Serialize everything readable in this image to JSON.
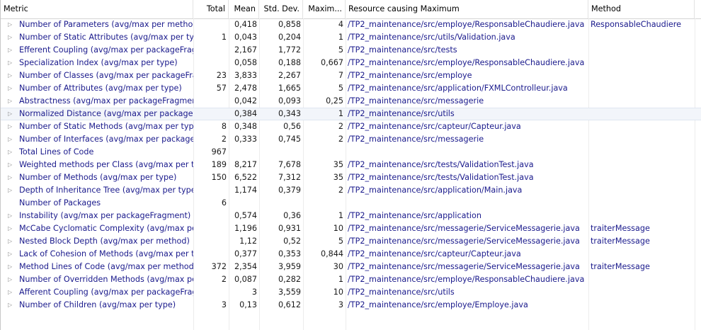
{
  "columns": {
    "metric": "Metric",
    "total": "Total",
    "mean": "Mean",
    "stddev": "Std. Dev.",
    "maximum": "Maxim...",
    "resource": "Resource causing Maximum",
    "method": "Method"
  },
  "rows": [
    {
      "metric": "Number of Parameters (avg/max per method)",
      "total": "",
      "mean": "0,418",
      "stddev": "0,858",
      "max": "4",
      "resource": "/TP2_maintenance/src/employe/ResponsableChaudiere.java",
      "method": "ResponsableChaudiere",
      "expandable": true
    },
    {
      "metric": "Number of Static Attributes (avg/max per type)",
      "total": "1",
      "mean": "0,043",
      "stddev": "0,204",
      "max": "1",
      "resource": "/TP2_maintenance/src/utils/Validation.java",
      "method": "",
      "expandable": true
    },
    {
      "metric": "Efferent Coupling (avg/max per packageFragment)",
      "total": "",
      "mean": "2,167",
      "stddev": "1,772",
      "max": "5",
      "resource": "/TP2_maintenance/src/tests",
      "method": "",
      "expandable": true
    },
    {
      "metric": "Specialization Index (avg/max per type)",
      "total": "",
      "mean": "0,058",
      "stddev": "0,188",
      "max": "0,667",
      "resource": "/TP2_maintenance/src/employe/ResponsableChaudiere.java",
      "method": "",
      "expandable": true
    },
    {
      "metric": "Number of Classes (avg/max per packageFragment)",
      "total": "23",
      "mean": "3,833",
      "stddev": "2,267",
      "max": "7",
      "resource": "/TP2_maintenance/src/employe",
      "method": "",
      "expandable": true
    },
    {
      "metric": "Number of Attributes (avg/max per type)",
      "total": "57",
      "mean": "2,478",
      "stddev": "1,665",
      "max": "5",
      "resource": "/TP2_maintenance/src/application/FXMLControlleur.java",
      "method": "",
      "expandable": true
    },
    {
      "metric": "Abstractness (avg/max per packageFragment)",
      "total": "",
      "mean": "0,042",
      "stddev": "0,093",
      "max": "0,25",
      "resource": "/TP2_maintenance/src/messagerie",
      "method": "",
      "expandable": true
    },
    {
      "metric": "Normalized Distance (avg/max per packageFragment)",
      "total": "",
      "mean": "0,384",
      "stddev": "0,343",
      "max": "1",
      "resource": "/TP2_maintenance/src/utils",
      "method": "",
      "expandable": true,
      "selected": true
    },
    {
      "metric": "Number of Static Methods (avg/max per type)",
      "total": "8",
      "mean": "0,348",
      "stddev": "0,56",
      "max": "2",
      "resource": "/TP2_maintenance/src/capteur/Capteur.java",
      "method": "",
      "expandable": true
    },
    {
      "metric": "Number of Interfaces (avg/max per packageFragment)",
      "total": "2",
      "mean": "0,333",
      "stddev": "0,745",
      "max": "2",
      "resource": "/TP2_maintenance/src/messagerie",
      "method": "",
      "expandable": true
    },
    {
      "metric": "Total Lines of Code",
      "total": "967",
      "mean": "",
      "stddev": "",
      "max": "",
      "resource": "",
      "method": "",
      "expandable": true
    },
    {
      "metric": "Weighted methods per Class (avg/max per type)",
      "total": "189",
      "mean": "8,217",
      "stddev": "7,678",
      "max": "35",
      "resource": "/TP2_maintenance/src/tests/ValidationTest.java",
      "method": "",
      "expandable": true
    },
    {
      "metric": "Number of Methods (avg/max per type)",
      "total": "150",
      "mean": "6,522",
      "stddev": "7,312",
      "max": "35",
      "resource": "/TP2_maintenance/src/tests/ValidationTest.java",
      "method": "",
      "expandable": true
    },
    {
      "metric": "Depth of Inheritance Tree (avg/max per type)",
      "total": "",
      "mean": "1,174",
      "stddev": "0,379",
      "max": "2",
      "resource": "/TP2_maintenance/src/application/Main.java",
      "method": "",
      "expandable": true
    },
    {
      "metric": "Number of Packages",
      "total": "6",
      "mean": "",
      "stddev": "",
      "max": "",
      "resource": "",
      "method": "",
      "expandable": false
    },
    {
      "metric": "Instability (avg/max per packageFragment)",
      "total": "",
      "mean": "0,574",
      "stddev": "0,36",
      "max": "1",
      "resource": "/TP2_maintenance/src/application",
      "method": "",
      "expandable": true
    },
    {
      "metric": "McCabe Cyclomatic Complexity (avg/max per method)",
      "total": "",
      "mean": "1,196",
      "stddev": "0,931",
      "max": "10",
      "resource": "/TP2_maintenance/src/messagerie/ServiceMessagerie.java",
      "method": "traiterMessage",
      "expandable": true
    },
    {
      "metric": "Nested Block Depth (avg/max per method)",
      "total": "",
      "mean": "1,12",
      "stddev": "0,52",
      "max": "5",
      "resource": "/TP2_maintenance/src/messagerie/ServiceMessagerie.java",
      "method": "traiterMessage",
      "expandable": true
    },
    {
      "metric": "Lack of Cohesion of Methods (avg/max per type)",
      "total": "",
      "mean": "0,377",
      "stddev": "0,353",
      "max": "0,844",
      "resource": "/TP2_maintenance/src/capteur/Capteur.java",
      "method": "",
      "expandable": true
    },
    {
      "metric": "Method Lines of Code (avg/max per method)",
      "total": "372",
      "mean": "2,354",
      "stddev": "3,959",
      "max": "30",
      "resource": "/TP2_maintenance/src/messagerie/ServiceMessagerie.java",
      "method": "traiterMessage",
      "expandable": true
    },
    {
      "metric": "Number of Overridden Methods (avg/max per type)",
      "total": "2",
      "mean": "0,087",
      "stddev": "0,282",
      "max": "1",
      "resource": "/TP2_maintenance/src/employe/ResponsableChaudiere.java",
      "method": "",
      "expandable": true
    },
    {
      "metric": "Afferent Coupling (avg/max per packageFragment)",
      "total": "",
      "mean": "3",
      "stddev": "3,559",
      "max": "10",
      "resource": "/TP2_maintenance/src/utils",
      "method": "",
      "expandable": true
    },
    {
      "metric": "Number of Children (avg/max per type)",
      "total": "3",
      "mean": "0,13",
      "stddev": "0,612",
      "max": "3",
      "resource": "/TP2_maintenance/src/employe/Employe.java",
      "method": "",
      "expandable": true
    }
  ]
}
